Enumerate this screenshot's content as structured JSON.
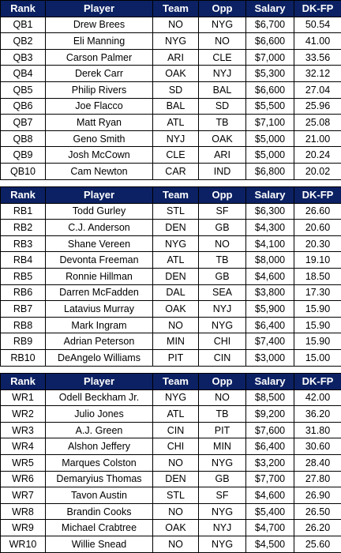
{
  "headers": [
    "Rank",
    "Player",
    "Team",
    "Opp",
    "Salary",
    "DK-FP"
  ],
  "tables": [
    {
      "rows": [
        [
          "QB1",
          "Drew Brees",
          "NO",
          "NYG",
          "$6,700",
          "50.54"
        ],
        [
          "QB2",
          "Eli Manning",
          "NYG",
          "NO",
          "$6,600",
          "41.00"
        ],
        [
          "QB3",
          "Carson Palmer",
          "ARI",
          "CLE",
          "$7,000",
          "33.56"
        ],
        [
          "QB4",
          "Derek Carr",
          "OAK",
          "NYJ",
          "$5,300",
          "32.12"
        ],
        [
          "QB5",
          "Philip Rivers",
          "SD",
          "BAL",
          "$6,600",
          "27.04"
        ],
        [
          "QB6",
          "Joe Flacco",
          "BAL",
          "SD",
          "$5,500",
          "25.96"
        ],
        [
          "QB7",
          "Matt Ryan",
          "ATL",
          "TB",
          "$7,100",
          "25.08"
        ],
        [
          "QB8",
          "Geno Smith",
          "NYJ",
          "OAK",
          "$5,000",
          "21.00"
        ],
        [
          "QB9",
          "Josh McCown",
          "CLE",
          "ARI",
          "$5,000",
          "20.24"
        ],
        [
          "QB10",
          "Cam Newton",
          "CAR",
          "IND",
          "$6,800",
          "20.02"
        ]
      ]
    },
    {
      "rows": [
        [
          "RB1",
          "Todd Gurley",
          "STL",
          "SF",
          "$6,300",
          "26.60"
        ],
        [
          "RB2",
          "C.J. Anderson",
          "DEN",
          "GB",
          "$4,300",
          "20.60"
        ],
        [
          "RB3",
          "Shane Vereen",
          "NYG",
          "NO",
          "$4,100",
          "20.30"
        ],
        [
          "RB4",
          "Devonta Freeman",
          "ATL",
          "TB",
          "$8,000",
          "19.10"
        ],
        [
          "RB5",
          "Ronnie Hillman",
          "DEN",
          "GB",
          "$4,600",
          "18.50"
        ],
        [
          "RB6",
          "Darren McFadden",
          "DAL",
          "SEA",
          "$3,800",
          "17.30"
        ],
        [
          "RB7",
          "Latavius Murray",
          "OAK",
          "NYJ",
          "$5,900",
          "15.90"
        ],
        [
          "RB8",
          "Mark Ingram",
          "NO",
          "NYG",
          "$6,400",
          "15.90"
        ],
        [
          "RB9",
          "Adrian Peterson",
          "MIN",
          "CHI",
          "$7,400",
          "15.90"
        ],
        [
          "RB10",
          "DeAngelo Williams",
          "PIT",
          "CIN",
          "$3,000",
          "15.00"
        ]
      ]
    },
    {
      "rows": [
        [
          "WR1",
          "Odell Beckham Jr.",
          "NYG",
          "NO",
          "$8,500",
          "42.00"
        ],
        [
          "WR2",
          "Julio Jones",
          "ATL",
          "TB",
          "$9,200",
          "36.20"
        ],
        [
          "WR3",
          "A.J. Green",
          "CIN",
          "PIT",
          "$7,600",
          "31.80"
        ],
        [
          "WR4",
          "Alshon Jeffery",
          "CHI",
          "MIN",
          "$6,400",
          "30.60"
        ],
        [
          "WR5",
          "Marques Colston",
          "NO",
          "NYG",
          "$3,200",
          "28.40"
        ],
        [
          "WR6",
          "Demaryius Thomas",
          "DEN",
          "GB",
          "$7,700",
          "27.80"
        ],
        [
          "WR7",
          "Tavon Austin",
          "STL",
          "SF",
          "$4,600",
          "26.90"
        ],
        [
          "WR8",
          "Brandin Cooks",
          "NO",
          "NYG",
          "$5,400",
          "26.50"
        ],
        [
          "WR9",
          "Michael Crabtree",
          "OAK",
          "NYJ",
          "$4,700",
          "26.20"
        ],
        [
          "WR10",
          "Willie Snead",
          "NO",
          "NYG",
          "$4,500",
          "25.60"
        ]
      ]
    }
  ],
  "colors": {
    "header_bg": "#0b2163",
    "header_text": "#ffffff",
    "border": "#000000"
  }
}
